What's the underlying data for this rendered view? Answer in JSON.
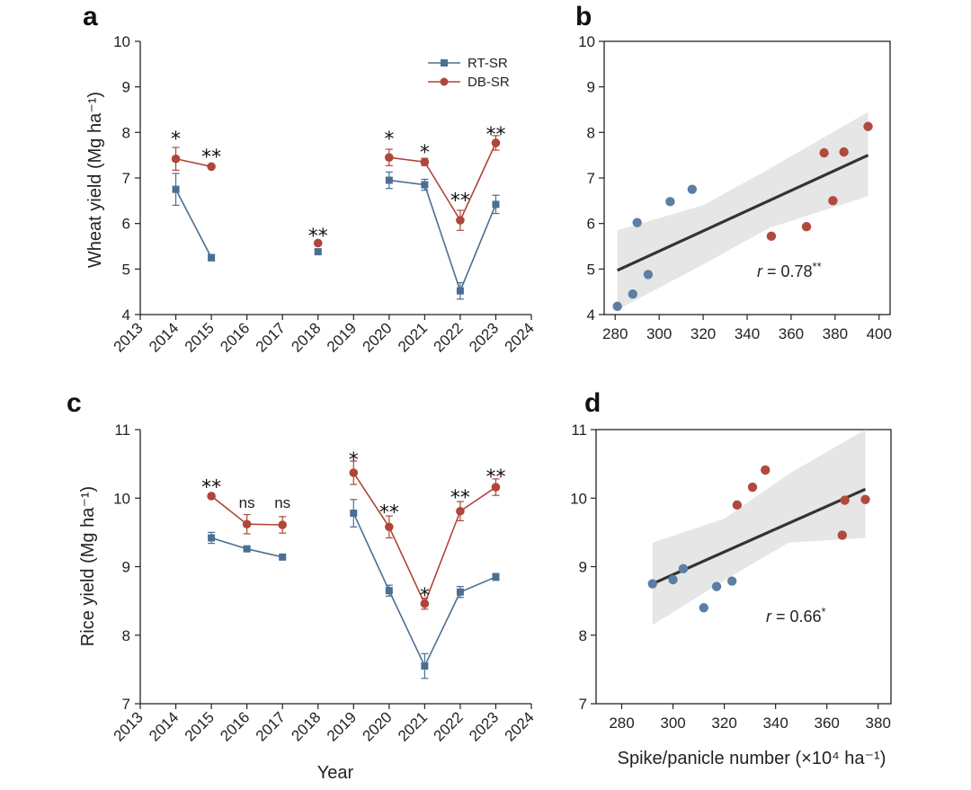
{
  "colors": {
    "rt": "#4a6f93",
    "db": "#b0453a",
    "fit": "#333333",
    "band": "#e6e6e6",
    "scatter_blue": "#5b7fa3",
    "scatter_red": "#b14a3e"
  },
  "legend": {
    "rt_label": "RT-SR",
    "db_label": "DB-SR"
  },
  "chart_data": [
    {
      "panel": "a",
      "type": "line",
      "ylabel": "Wheat yield (Mg ha⁻¹)",
      "xlabel": "",
      "xlim": [
        2013,
        2024
      ],
      "ylim": [
        4,
        10
      ],
      "xticks": [
        2013,
        2014,
        2015,
        2016,
        2017,
        2018,
        2019,
        2020,
        2021,
        2022,
        2023,
        2024
      ],
      "yticks": [
        4,
        5,
        6,
        7,
        8,
        9,
        10
      ],
      "segments": [
        [
          2014,
          2015
        ],
        [
          2018
        ],
        [
          2020,
          2021,
          2022,
          2023
        ]
      ],
      "series": [
        {
          "name": "RT-SR",
          "points": {
            "2014": 6.75,
            "2015": 5.25,
            "2018": 5.38,
            "2020": 6.95,
            "2021": 6.85,
            "2022": 4.52,
            "2023": 6.42
          },
          "errors": {
            "2014": 0.35,
            "2015": 0.07,
            "2018": 0.04,
            "2020": 0.18,
            "2021": 0.12,
            "2022": 0.18,
            "2023": 0.2
          }
        },
        {
          "name": "DB-SR",
          "points": {
            "2014": 7.42,
            "2015": 7.25,
            "2018": 5.57,
            "2020": 7.45,
            "2021": 7.35,
            "2022": 6.07,
            "2023": 7.77
          },
          "errors": {
            "2014": 0.25,
            "2015": 0.03,
            "2018": 0.04,
            "2020": 0.18,
            "2021": 0.08,
            "2022": 0.22,
            "2023": 0.16
          }
        }
      ],
      "annotations": [
        {
          "x": 2014,
          "y": 7.95,
          "text": "*"
        },
        {
          "x": 2015,
          "y": 7.55,
          "text": "**"
        },
        {
          "x": 2018,
          "y": 5.82,
          "text": "**"
        },
        {
          "x": 2020,
          "y": 7.95,
          "text": "*"
        },
        {
          "x": 2021,
          "y": 7.65,
          "text": "*"
        },
        {
          "x": 2022,
          "y": 6.6,
          "text": "**"
        },
        {
          "x": 2023,
          "y": 8.05,
          "text": "**"
        }
      ]
    },
    {
      "panel": "b",
      "type": "scatter",
      "xlim": [
        275,
        405
      ],
      "ylim": [
        4,
        10
      ],
      "xticks": [
        280,
        300,
        320,
        340,
        360,
        380,
        400
      ],
      "yticks": [
        4,
        5,
        6,
        7,
        8,
        9,
        10
      ],
      "points_blue": [
        [
          281,
          4.18
        ],
        [
          288,
          4.45
        ],
        [
          290,
          6.02
        ],
        [
          295,
          4.88
        ],
        [
          305,
          6.48
        ],
        [
          315,
          6.75
        ]
      ],
      "points_red": [
        [
          351,
          5.72
        ],
        [
          367,
          5.93
        ],
        [
          375,
          7.55
        ],
        [
          379,
          6.5
        ],
        [
          384,
          7.57
        ],
        [
          395,
          8.13
        ]
      ],
      "fit": [
        [
          281,
          4.97
        ],
        [
          395,
          7.5
        ]
      ],
      "band_upper": [
        [
          281,
          5.85
        ],
        [
          320,
          6.4
        ],
        [
          350,
          7.2
        ],
        [
          395,
          8.45
        ]
      ],
      "band_lower": [
        [
          281,
          4.1
        ],
        [
          320,
          5.1
        ],
        [
          350,
          5.9
        ],
        [
          395,
          6.6
        ]
      ],
      "r_label": "r = 0.78**"
    },
    {
      "panel": "c",
      "type": "line",
      "ylabel": "Rice yield (Mg ha⁻¹)",
      "xlabel": "Year",
      "xlim": [
        2013,
        2024
      ],
      "ylim": [
        7,
        11
      ],
      "xticks": [
        2013,
        2014,
        2015,
        2016,
        2017,
        2018,
        2019,
        2020,
        2021,
        2022,
        2023,
        2024
      ],
      "yticks": [
        7,
        8,
        9,
        10,
        11
      ],
      "segments": [
        [
          2015,
          2016,
          2017
        ],
        [
          2019,
          2020,
          2021,
          2022,
          2023
        ]
      ],
      "series": [
        {
          "name": "RT-SR",
          "points": {
            "2015": 9.42,
            "2016": 9.26,
            "2017": 9.14,
            "2019": 9.78,
            "2020": 8.65,
            "2021": 7.55,
            "2022": 8.63,
            "2023": 8.85
          },
          "errors": {
            "2015": 0.08,
            "2016": 0.03,
            "2017": 0.03,
            "2019": 0.2,
            "2020": 0.08,
            "2021": 0.18,
            "2022": 0.08,
            "2023": 0.05
          }
        },
        {
          "name": "DB-SR",
          "points": {
            "2015": 10.03,
            "2016": 9.62,
            "2017": 9.61,
            "2019": 10.37,
            "2020": 9.58,
            "2021": 8.46,
            "2022": 9.81,
            "2023": 10.16
          },
          "errors": {
            "2015": 0.03,
            "2016": 0.14,
            "2017": 0.12,
            "2019": 0.17,
            "2020": 0.16,
            "2021": 0.08,
            "2022": 0.14,
            "2023": 0.12
          }
        }
      ],
      "annotations": [
        {
          "x": 2015,
          "y": 10.22,
          "text": "**"
        },
        {
          "x": 2016,
          "y": 9.86,
          "text": "ns"
        },
        {
          "x": 2017,
          "y": 9.86,
          "text": "ns"
        },
        {
          "x": 2019,
          "y": 10.62,
          "text": "*"
        },
        {
          "x": 2020,
          "y": 9.85,
          "text": "**"
        },
        {
          "x": 2021,
          "y": 8.64,
          "text": "*"
        },
        {
          "x": 2022,
          "y": 10.07,
          "text": "**"
        },
        {
          "x": 2023,
          "y": 10.37,
          "text": "**"
        }
      ]
    },
    {
      "panel": "d",
      "type": "scatter",
      "xlabel": "Spike/panicle number (×10⁴ ha⁻¹)",
      "xlim": [
        270,
        385
      ],
      "ylim": [
        7,
        11
      ],
      "xticks": [
        280,
        300,
        320,
        340,
        360,
        380
      ],
      "yticks": [
        7,
        8,
        9,
        10,
        11
      ],
      "points_blue": [
        [
          292,
          8.75
        ],
        [
          300,
          8.81
        ],
        [
          304,
          8.97
        ],
        [
          312,
          8.4
        ],
        [
          317,
          8.71
        ],
        [
          323,
          8.79
        ]
      ],
      "points_red": [
        [
          325,
          9.9
        ],
        [
          331,
          10.16
        ],
        [
          336,
          10.41
        ],
        [
          366,
          9.46
        ],
        [
          367,
          9.97
        ],
        [
          375,
          9.98
        ]
      ],
      "fit": [
        [
          292,
          8.75
        ],
        [
          375,
          10.13
        ]
      ],
      "band_upper": [
        [
          292,
          9.35
        ],
        [
          320,
          9.7
        ],
        [
          345,
          10.35
        ],
        [
          375,
          11.0
        ]
      ],
      "band_lower": [
        [
          292,
          8.15
        ],
        [
          320,
          8.8
        ],
        [
          345,
          9.35
        ],
        [
          375,
          9.42
        ]
      ],
      "r_label": "r = 0.66*"
    }
  ],
  "panel_labels": [
    "a",
    "b",
    "c",
    "d"
  ]
}
